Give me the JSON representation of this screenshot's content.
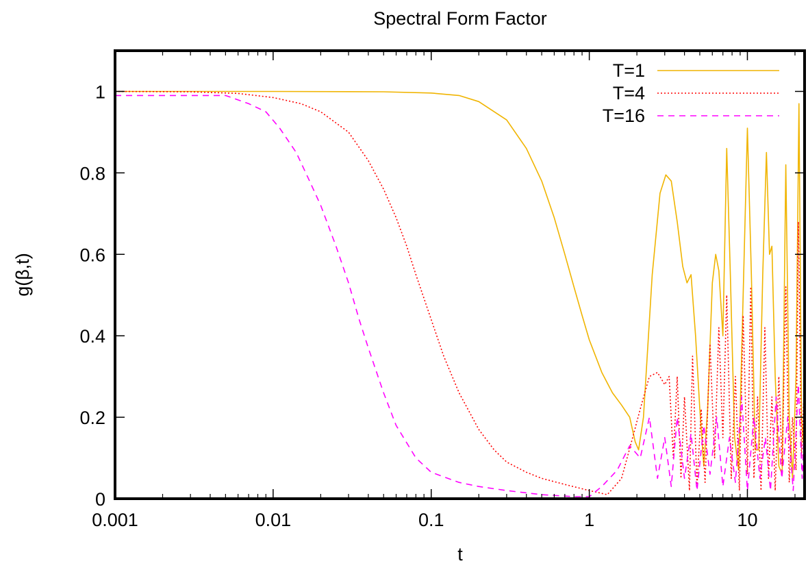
{
  "chart_data": {
    "type": "line",
    "title": "Spectral Form Factor",
    "xlabel": "t",
    "ylabel": "g(β,t)",
    "xscale": "log",
    "xlim": [
      0.001,
      23
    ],
    "ylim": [
      0,
      1.1
    ],
    "xticks": [
      {
        "value": 0.001,
        "label": "0.001"
      },
      {
        "value": 0.01,
        "label": "0.01"
      },
      {
        "value": 0.1,
        "label": "0.1"
      },
      {
        "value": 1,
        "label": "1"
      },
      {
        "value": 10,
        "label": "10"
      }
    ],
    "yticks": [
      {
        "value": 0,
        "label": "0"
      },
      {
        "value": 0.2,
        "label": "0.2"
      },
      {
        "value": 0.4,
        "label": "0.4"
      },
      {
        "value": 0.6,
        "label": "0.6"
      },
      {
        "value": 0.8,
        "label": "0.8"
      },
      {
        "value": 1,
        "label": "1"
      }
    ],
    "grid": false,
    "legend_position": "top-right",
    "series": [
      {
        "name": "T=1",
        "color": "#f0b400",
        "dash": "solid",
        "points": [
          [
            0.001,
            1.0
          ],
          [
            0.01,
            1.0
          ],
          [
            0.05,
            0.999
          ],
          [
            0.1,
            0.996
          ],
          [
            0.15,
            0.99
          ],
          [
            0.2,
            0.975
          ],
          [
            0.3,
            0.93
          ],
          [
            0.4,
            0.86
          ],
          [
            0.5,
            0.78
          ],
          [
            0.6,
            0.69
          ],
          [
            0.7,
            0.6
          ],
          [
            0.8,
            0.52
          ],
          [
            0.9,
            0.45
          ],
          [
            1.0,
            0.39
          ],
          [
            1.2,
            0.31
          ],
          [
            1.4,
            0.26
          ],
          [
            1.6,
            0.23
          ],
          [
            1.8,
            0.2
          ],
          [
            1.95,
            0.14
          ],
          [
            2.05,
            0.12
          ],
          [
            2.2,
            0.2
          ],
          [
            2.5,
            0.55
          ],
          [
            2.8,
            0.75
          ],
          [
            3.05,
            0.795
          ],
          [
            3.3,
            0.78
          ],
          [
            3.6,
            0.68
          ],
          [
            3.9,
            0.57
          ],
          [
            4.15,
            0.53
          ],
          [
            4.4,
            0.55
          ],
          [
            4.7,
            0.4
          ],
          [
            5.0,
            0.22
          ],
          [
            5.3,
            0.08
          ],
          [
            5.6,
            0.22
          ],
          [
            6.0,
            0.53
          ],
          [
            6.3,
            0.6
          ],
          [
            6.6,
            0.56
          ],
          [
            7.0,
            0.4
          ],
          [
            7.4,
            0.86
          ],
          [
            7.8,
            0.55
          ],
          [
            8.3,
            0.15
          ],
          [
            8.8,
            0.07
          ],
          [
            9.4,
            0.5
          ],
          [
            10.0,
            0.91
          ],
          [
            10.6,
            0.55
          ],
          [
            11.2,
            0.12
          ],
          [
            11.8,
            0.12
          ],
          [
            12.5,
            0.55
          ],
          [
            13.2,
            0.85
          ],
          [
            13.8,
            0.6
          ],
          [
            14.3,
            0.62
          ],
          [
            15.0,
            0.3
          ],
          [
            15.8,
            0.08
          ],
          [
            16.6,
            0.06
          ],
          [
            17.5,
            0.82
          ],
          [
            18.4,
            0.2
          ],
          [
            19.3,
            0.05
          ],
          [
            20.3,
            0.3
          ],
          [
            21.2,
            0.97
          ],
          [
            22.0,
            0.2
          ],
          [
            23.0,
            0.1
          ]
        ]
      },
      {
        "name": "T=4",
        "color": "#ff0000",
        "dash": "dotted",
        "points": [
          [
            0.001,
            1.0
          ],
          [
            0.003,
            0.999
          ],
          [
            0.006,
            0.995
          ],
          [
            0.01,
            0.985
          ],
          [
            0.015,
            0.97
          ],
          [
            0.02,
            0.95
          ],
          [
            0.03,
            0.9
          ],
          [
            0.04,
            0.83
          ],
          [
            0.05,
            0.76
          ],
          [
            0.06,
            0.69
          ],
          [
            0.07,
            0.62
          ],
          [
            0.08,
            0.55
          ],
          [
            0.1,
            0.44
          ],
          [
            0.12,
            0.35
          ],
          [
            0.15,
            0.26
          ],
          [
            0.2,
            0.17
          ],
          [
            0.25,
            0.12
          ],
          [
            0.3,
            0.09
          ],
          [
            0.4,
            0.065
          ],
          [
            0.5,
            0.05
          ],
          [
            0.7,
            0.035
          ],
          [
            1.0,
            0.02
          ],
          [
            1.3,
            0.01
          ],
          [
            1.6,
            0.05
          ],
          [
            1.85,
            0.14
          ],
          [
            2.1,
            0.22
          ],
          [
            2.4,
            0.3
          ],
          [
            2.7,
            0.31
          ],
          [
            3.0,
            0.28
          ],
          [
            3.2,
            0.3
          ],
          [
            3.4,
            0.1
          ],
          [
            3.6,
            0.3
          ],
          [
            3.8,
            0.05
          ],
          [
            4.0,
            0.25
          ],
          [
            4.3,
            0.02
          ],
          [
            4.5,
            0.35
          ],
          [
            4.8,
            0.03
          ],
          [
            5.1,
            0.22
          ],
          [
            5.4,
            0.04
          ],
          [
            5.8,
            0.38
          ],
          [
            6.2,
            0.1
          ],
          [
            6.6,
            0.42
          ],
          [
            7.0,
            0.15
          ],
          [
            7.4,
            0.5
          ],
          [
            7.9,
            0.05
          ],
          [
            8.4,
            0.3
          ],
          [
            8.9,
            0.02
          ],
          [
            9.4,
            0.45
          ],
          [
            10.0,
            0.06
          ],
          [
            10.5,
            0.52
          ],
          [
            11.0,
            0.05
          ],
          [
            11.6,
            0.25
          ],
          [
            12.2,
            0.02
          ],
          [
            12.9,
            0.42
          ],
          [
            13.6,
            0.05
          ],
          [
            14.3,
            0.25
          ],
          [
            15.0,
            0.02
          ],
          [
            15.8,
            0.3
          ],
          [
            16.6,
            0.08
          ],
          [
            17.5,
            0.52
          ],
          [
            18.4,
            0.04
          ],
          [
            19.3,
            0.2
          ],
          [
            20.3,
            0.07
          ],
          [
            21.0,
            0.68
          ],
          [
            22.0,
            0.1
          ],
          [
            23.0,
            0.3
          ]
        ]
      },
      {
        "name": "T=16",
        "color": "#ff00ff",
        "dash": "dashed",
        "points": [
          [
            0.001,
            0.99
          ],
          [
            0.003,
            0.99
          ],
          [
            0.005,
            0.99
          ],
          [
            0.007,
            0.97
          ],
          [
            0.009,
            0.95
          ],
          [
            0.011,
            0.91
          ],
          [
            0.014,
            0.85
          ],
          [
            0.017,
            0.78
          ],
          [
            0.02,
            0.72
          ],
          [
            0.025,
            0.62
          ],
          [
            0.03,
            0.53
          ],
          [
            0.035,
            0.44
          ],
          [
            0.04,
            0.37
          ],
          [
            0.05,
            0.26
          ],
          [
            0.06,
            0.18
          ],
          [
            0.08,
            0.1
          ],
          [
            0.1,
            0.065
          ],
          [
            0.15,
            0.04
          ],
          [
            0.2,
            0.03
          ],
          [
            0.3,
            0.02
          ],
          [
            0.5,
            0.01
          ],
          [
            0.8,
            0.005
          ],
          [
            1.0,
            0.005
          ],
          [
            1.2,
            0.03
          ],
          [
            1.5,
            0.07
          ],
          [
            1.8,
            0.13
          ],
          [
            2.1,
            0.1
          ],
          [
            2.4,
            0.2
          ],
          [
            2.7,
            0.05
          ],
          [
            3.0,
            0.15
          ],
          [
            3.3,
            0.03
          ],
          [
            3.6,
            0.2
          ],
          [
            4.0,
            0.05
          ],
          [
            4.4,
            0.16
          ],
          [
            4.8,
            0.02
          ],
          [
            5.3,
            0.18
          ],
          [
            5.8,
            0.06
          ],
          [
            6.4,
            0.2
          ],
          [
            7.0,
            0.03
          ],
          [
            7.7,
            0.15
          ],
          [
            8.4,
            0.04
          ],
          [
            9.2,
            0.25
          ],
          [
            10.0,
            0.02
          ],
          [
            11.0,
            0.2
          ],
          [
            12.0,
            0.05
          ],
          [
            13.0,
            0.15
          ],
          [
            14.0,
            0.02
          ],
          [
            15.2,
            0.25
          ],
          [
            16.5,
            0.05
          ],
          [
            18.0,
            0.2
          ],
          [
            19.5,
            0.02
          ],
          [
            21.0,
            0.28
          ],
          [
            22.2,
            0.05
          ],
          [
            23.0,
            0.2
          ]
        ]
      }
    ]
  }
}
